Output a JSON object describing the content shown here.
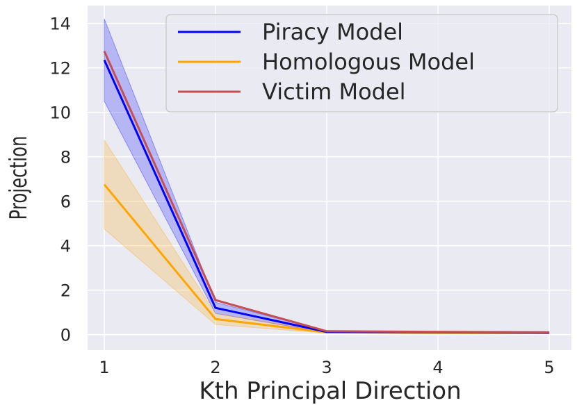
{
  "chart_data": {
    "type": "line",
    "xlabel": "Kth Principal Direction",
    "ylabel": "Projection",
    "x": [
      1,
      2,
      3,
      4,
      5
    ],
    "xticks": [
      "1",
      "2",
      "3",
      "4",
      "5"
    ],
    "yticks": [
      "0",
      "2",
      "4",
      "6",
      "8",
      "10",
      "12",
      "14"
    ],
    "xlim": [
      0.85,
      5.2
    ],
    "ylim": [
      -0.7,
      14.8
    ],
    "grid": true,
    "legend_position": "top-right",
    "series": [
      {
        "name": "Piracy Model",
        "color": "#0000ff",
        "values": [
          12.35,
          1.2,
          0.12,
          0.1,
          0.08
        ],
        "lower": [
          10.5,
          0.95,
          0.08,
          0.06,
          0.05
        ],
        "upper": [
          14.2,
          1.45,
          0.16,
          0.14,
          0.12
        ]
      },
      {
        "name": "Homologous Model",
        "color": "#ffa500",
        "values": [
          6.75,
          0.7,
          0.1,
          0.08,
          0.07
        ],
        "lower": [
          4.75,
          0.45,
          0.06,
          0.05,
          0.04
        ],
        "upper": [
          8.75,
          0.95,
          0.14,
          0.12,
          0.1
        ]
      },
      {
        "name": "Victim Model",
        "color": "#c44e52",
        "values": [
          12.75,
          1.55,
          0.15,
          0.12,
          0.1
        ],
        "lower": null,
        "upper": null
      }
    ]
  }
}
